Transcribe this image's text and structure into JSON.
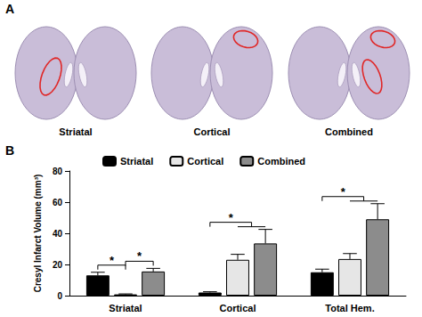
{
  "panel_a": {
    "label": "A",
    "captions": [
      "Striatal",
      "Cortical",
      "Combined"
    ]
  },
  "panel_b": {
    "label": "B"
  },
  "chart_data": {
    "type": "bar",
    "categories": [
      "Striatal",
      "Cortical",
      "Total Hem."
    ],
    "series": [
      {
        "name": "Striatal",
        "color": "#000000",
        "values": [
          13,
          2,
          15
        ],
        "errors": [
          2,
          0.5,
          2
        ]
      },
      {
        "name": "Cortical",
        "color": "#e6e6e6",
        "values": [
          0.8,
          23,
          23.5
        ],
        "errors": [
          0.3,
          3.5,
          3.5
        ]
      },
      {
        "name": "Combined",
        "color": "#8c8c8c",
        "values": [
          15.5,
          33.5,
          49
        ],
        "errors": [
          2,
          9,
          10
        ]
      }
    ],
    "ylabel": "Cresyl Infarct Volume (mm³)",
    "ylim": [
      0,
      80
    ],
    "yticks": [
      0,
      20,
      40,
      60,
      80
    ],
    "grid": false,
    "legend": "top",
    "significance": [
      {
        "category": "Striatal",
        "from": "Striatal",
        "to": [
          "Cortical"
        ],
        "label": "*"
      },
      {
        "category": "Striatal",
        "from": "Cortical",
        "to": [
          "Combined"
        ],
        "label": "*"
      },
      {
        "category": "Cortical",
        "from": "Striatal",
        "to": [
          "Cortical",
          "Combined"
        ],
        "label": "*"
      },
      {
        "category": "Total Hem.",
        "from": "Striatal",
        "to": [
          "Cortical",
          "Combined"
        ],
        "label": "*"
      }
    ]
  }
}
